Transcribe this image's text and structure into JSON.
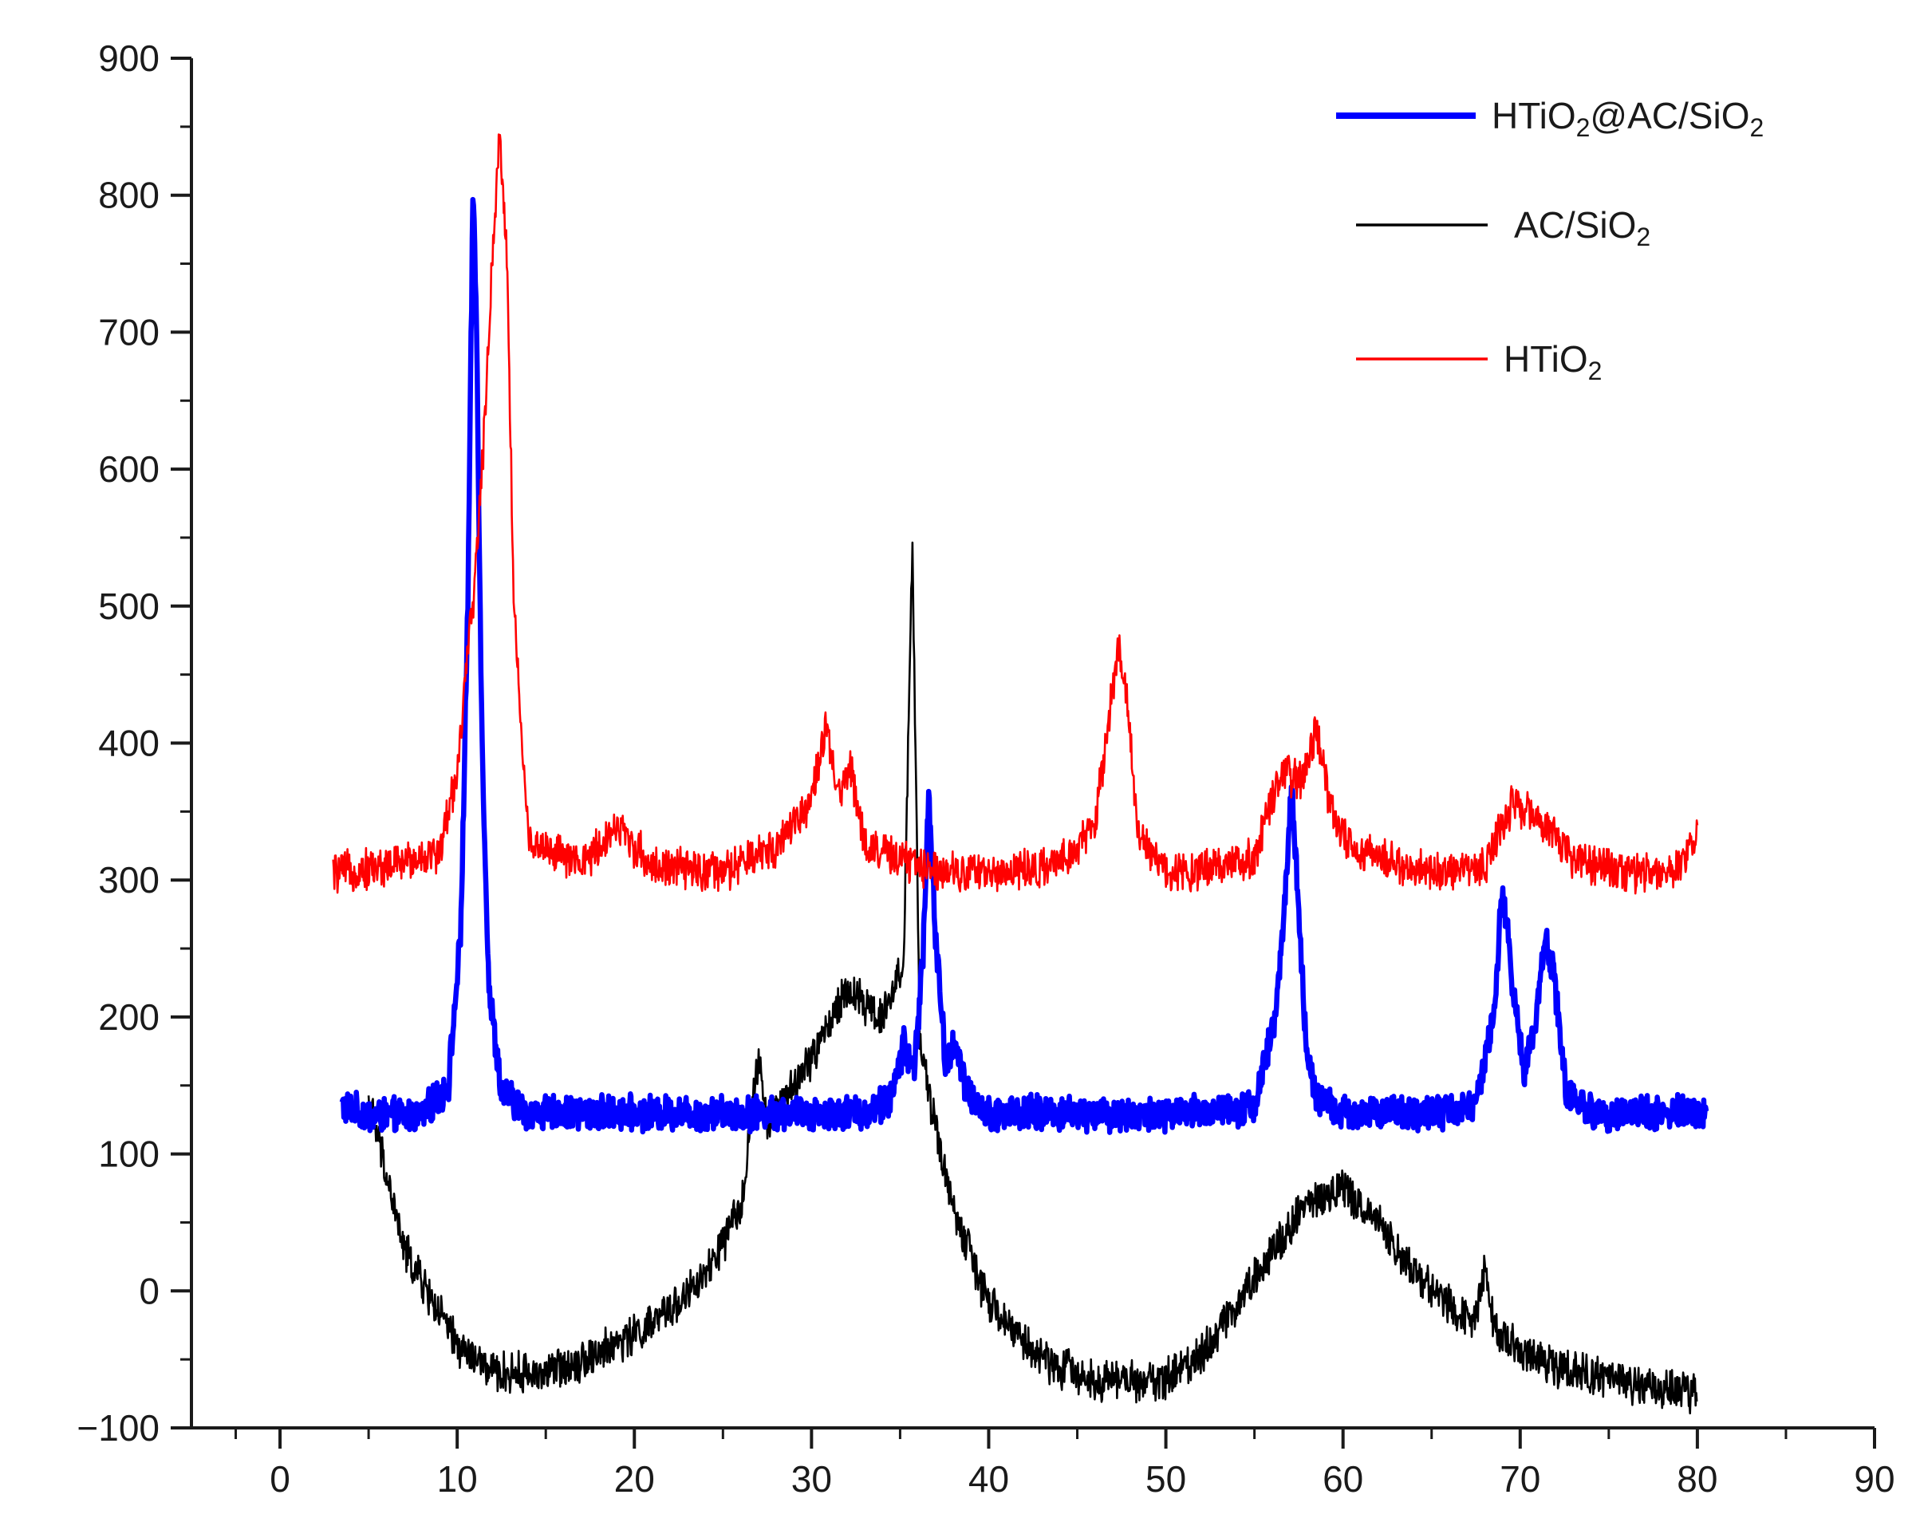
{
  "chart_data": {
    "type": "line",
    "title": "",
    "xlabel": "",
    "ylabel": "",
    "xlim": [
      -5,
      90
    ],
    "ylim": [
      -100,
      900
    ],
    "x_ticks": [
      0,
      10,
      20,
      30,
      40,
      50,
      60,
      70,
      80,
      90
    ],
    "y_ticks": [
      -100,
      0,
      100,
      200,
      300,
      400,
      500,
      600,
      700,
      800,
      900
    ],
    "x_tick_labels": [
      "0",
      "10",
      "20",
      "30",
      "40",
      "50",
      "60",
      "70",
      "80",
      "90"
    ],
    "y_tick_labels": [
      "−100",
      "0",
      "100",
      "200",
      "300",
      "400",
      "500",
      "600",
      "700",
      "800",
      "900"
    ],
    "grid": false,
    "legend_position": "top-right",
    "series": [
      {
        "name": "HTiO₂@AC/SiO₂",
        "name_parts": [
          "HTiO",
          "2",
          "@AC/SiO",
          "2"
        ],
        "color": "#0000ff",
        "line_style": "thick",
        "x": [
          3.5,
          5,
          8,
          9.5,
          10.2,
          10.6,
          10.9,
          11.1,
          11.4,
          11.8,
          12.5,
          14,
          20,
          25,
          30,
          33,
          34.5,
          35.2,
          35.8,
          36.3,
          36.6,
          37,
          37.6,
          38.1,
          38.7,
          40,
          45,
          50,
          55,
          56.2,
          56.8,
          57.1,
          57.4,
          57.9,
          58.5,
          60,
          65,
          67.5,
          68.5,
          69,
          69.6,
          70.2,
          70.9,
          71.4,
          71.9,
          72.6,
          74,
          80.5
        ],
        "y": [
          135,
          128,
          128,
          150,
          260,
          500,
          810,
          700,
          400,
          220,
          145,
          130,
          130,
          130,
          130,
          130,
          140,
          180,
          160,
          250,
          360,
          260,
          160,
          185,
          145,
          130,
          130,
          128,
          135,
          200,
          300,
          370,
          300,
          180,
          140,
          130,
          130,
          135,
          200,
          295,
          220,
          160,
          200,
          260,
          230,
          145,
          130,
          130
        ]
      },
      {
        "name": "AC/SiO₂",
        "name_parts": [
          "AC/SiO",
          "2"
        ],
        "color": "#000000",
        "line_style": "thin",
        "x": [
          5,
          7,
          10,
          12,
          15,
          18,
          21,
          24,
          26,
          27,
          27.5,
          28,
          30,
          32,
          34,
          35.2,
          35.7,
          36.1,
          37,
          38,
          40,
          43,
          46,
          50,
          52,
          54,
          56,
          58,
          60,
          62,
          64,
          66,
          67.5,
          68,
          68.5,
          70,
          72,
          75,
          80
        ],
        "y": [
          140,
          30,
          -40,
          -60,
          -60,
          -45,
          -25,
          10,
          60,
          170,
          120,
          130,
          170,
          220,
          200,
          240,
          550,
          180,
          120,
          60,
          -10,
          -50,
          -65,
          -65,
          -45,
          -10,
          30,
          65,
          75,
          50,
          15,
          -10,
          -20,
          20,
          -25,
          -45,
          -55,
          -65,
          -75
        ]
      },
      {
        "name": "HTiO₂",
        "name_parts": [
          "HTiO",
          "2"
        ],
        "color": "#ff0000",
        "line_style": "thin",
        "x": [
          3,
          6,
          9,
          10,
          11,
          11.5,
          12,
          12.4,
          12.8,
          13.2,
          14,
          17,
          19,
          21,
          25,
          28,
          30,
          30.8,
          31.5,
          32.2,
          33,
          36,
          40,
          44,
          46,
          47,
          47.3,
          47.8,
          48.5,
          50,
          55,
          56.5,
          57.5,
          58.5,
          59.5,
          61,
          65,
          68,
          69.5,
          70.5,
          71.5,
          73,
          76,
          79,
          80
        ],
        "y": [
          305,
          310,
          320,
          380,
          520,
          620,
          760,
          845,
          760,
          500,
          330,
          310,
          340,
          310,
          305,
          325,
          360,
          410,
          360,
          385,
          325,
          310,
          305,
          310,
          340,
          440,
          470,
          430,
          330,
          305,
          315,
          380,
          370,
          410,
          340,
          320,
          305,
          310,
          355,
          350,
          340,
          315,
          305,
          310,
          335
        ]
      }
    ]
  }
}
